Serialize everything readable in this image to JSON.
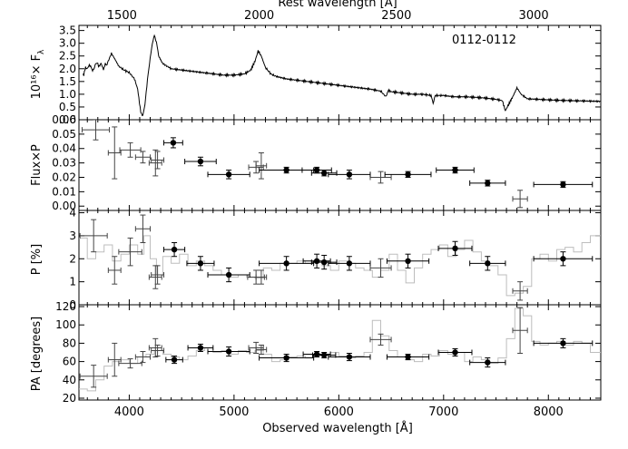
{
  "chart_data": {
    "type": "multi-panel-spectropolarimetry",
    "top_axis": {
      "label": "Rest wavelength [Å]",
      "ticks": [
        1500,
        2000,
        2500,
        3000
      ]
    },
    "x_axis": {
      "label": "Observed wavelength [Å]",
      "range": [
        3520,
        8500
      ],
      "ticks": [
        4000,
        5000,
        6000,
        7000,
        8000
      ]
    },
    "panels": [
      {
        "id": "flux",
        "ylabel": "10¹⁶× F",
        "ylabel_sub": "λ",
        "ylim": [
          0,
          3.7
        ],
        "yticks": [
          "0.0",
          "0.5",
          "1.0",
          "1.5",
          "2.0",
          "2.5",
          "3.0",
          "3.5"
        ],
        "annotation": "0112-0112",
        "spectrum_anchor": [
          [
            3560,
            1.8
          ],
          [
            3600,
            2.1
          ],
          [
            3650,
            2.0
          ],
          [
            3700,
            2.2
          ],
          [
            3760,
            2.05
          ],
          [
            3800,
            2.3
          ],
          [
            3830,
            2.6
          ],
          [
            3860,
            2.4
          ],
          [
            3900,
            2.1
          ],
          [
            3950,
            1.95
          ],
          [
            4000,
            1.85
          ],
          [
            4050,
            1.6
          ],
          [
            4080,
            1.2
          ],
          [
            4110,
            0.3
          ],
          [
            4130,
            0.15
          ],
          [
            4150,
            0.6
          ],
          [
            4180,
            1.8
          ],
          [
            4200,
            2.4
          ],
          [
            4220,
            3.0
          ],
          [
            4240,
            3.3
          ],
          [
            4260,
            3.05
          ],
          [
            4280,
            2.5
          ],
          [
            4320,
            2.2
          ],
          [
            4400,
            2.0
          ],
          [
            4500,
            1.95
          ],
          [
            4600,
            1.9
          ],
          [
            4700,
            1.85
          ],
          [
            4800,
            1.8
          ],
          [
            4900,
            1.75
          ],
          [
            5000,
            1.75
          ],
          [
            5100,
            1.8
          ],
          [
            5160,
            1.95
          ],
          [
            5200,
            2.3
          ],
          [
            5230,
            2.7
          ],
          [
            5260,
            2.5
          ],
          [
            5300,
            2.05
          ],
          [
            5350,
            1.8
          ],
          [
            5400,
            1.7
          ],
          [
            5500,
            1.6
          ],
          [
            5600,
            1.55
          ],
          [
            5700,
            1.5
          ],
          [
            5800,
            1.45
          ],
          [
            5900,
            1.4
          ],
          [
            6000,
            1.35
          ],
          [
            6100,
            1.3
          ],
          [
            6200,
            1.25
          ],
          [
            6300,
            1.2
          ],
          [
            6400,
            1.12
          ],
          [
            6450,
            0.9
          ],
          [
            6470,
            1.15
          ],
          [
            6500,
            1.1
          ],
          [
            6600,
            1.05
          ],
          [
            6700,
            1.0
          ],
          [
            6800,
            1.0
          ],
          [
            6880,
            0.95
          ],
          [
            6900,
            0.65
          ],
          [
            6920,
            0.95
          ],
          [
            7000,
            0.95
          ],
          [
            7100,
            0.9
          ],
          [
            7200,
            0.9
          ],
          [
            7300,
            0.88
          ],
          [
            7400,
            0.85
          ],
          [
            7500,
            0.8
          ],
          [
            7560,
            0.75
          ],
          [
            7590,
            0.35
          ],
          [
            7620,
            0.6
          ],
          [
            7660,
            0.9
          ],
          [
            7700,
            1.25
          ],
          [
            7740,
            1.0
          ],
          [
            7800,
            0.82
          ],
          [
            7900,
            0.8
          ],
          [
            8000,
            0.78
          ],
          [
            8100,
            0.76
          ],
          [
            8200,
            0.75
          ],
          [
            8300,
            0.74
          ],
          [
            8400,
            0.73
          ],
          [
            8500,
            0.72
          ]
        ]
      },
      {
        "id": "polflux",
        "ylabel": "Flux×P",
        "ylim": [
          -0.003,
          0.06
        ],
        "yticks": [
          "0.00",
          "0.01",
          "0.02",
          "0.03",
          "0.04",
          "0.05",
          "0.06"
        ],
        "filled": [
          [
            4420,
            0.044,
            90,
            0.0035
          ],
          [
            4680,
            0.031,
            150,
            0.003
          ],
          [
            4950,
            0.022,
            200,
            0.003
          ],
          [
            5500,
            0.025,
            260,
            0.002
          ],
          [
            5790,
            0.025,
            140,
            0.002
          ],
          [
            5860,
            0.023,
            120,
            0.002
          ],
          [
            6100,
            0.022,
            200,
            0.003
          ],
          [
            6660,
            0.022,
            220,
            0.002
          ],
          [
            7110,
            0.025,
            180,
            0.002
          ],
          [
            7420,
            0.016,
            170,
            0.002
          ],
          [
            8140,
            0.015,
            280,
            0.002
          ]
        ],
        "open": [
          [
            3680,
            0.053,
            130,
            0.007
          ],
          [
            3860,
            0.037,
            60,
            0.018
          ],
          [
            4010,
            0.039,
            100,
            0.005
          ],
          [
            4130,
            0.034,
            70,
            0.004
          ],
          [
            4250,
            0.03,
            60,
            0.009
          ],
          [
            4270,
            0.032,
            60,
            0.006
          ],
          [
            5260,
            0.028,
            50,
            0.009
          ],
          [
            5210,
            0.027,
            70,
            0.004
          ],
          [
            6400,
            0.02,
            100,
            0.004
          ],
          [
            7730,
            0.005,
            70,
            0.006
          ]
        ]
      },
      {
        "id": "pol",
        "ylabel": "P [%]",
        "ylim": [
          0,
          4.1
        ],
        "yticks": [
          "0",
          "1",
          "2",
          "3",
          "4"
        ],
        "filled": [
          [
            4430,
            2.4,
            100,
            0.3
          ],
          [
            4680,
            1.8,
            130,
            0.3
          ],
          [
            4950,
            1.3,
            200,
            0.3
          ],
          [
            5500,
            1.8,
            260,
            0.3
          ],
          [
            5790,
            1.9,
            130,
            0.3
          ],
          [
            5860,
            1.85,
            120,
            0.3
          ],
          [
            6100,
            1.8,
            200,
            0.3
          ],
          [
            6660,
            1.9,
            200,
            0.3
          ],
          [
            7110,
            2.45,
            160,
            0.3
          ],
          [
            7420,
            1.8,
            170,
            0.3
          ],
          [
            8140,
            2.0,
            280,
            0.3
          ]
        ],
        "open": [
          [
            3660,
            3.0,
            130,
            0.7
          ],
          [
            3860,
            1.5,
            60,
            0.6
          ],
          [
            4010,
            2.3,
            110,
            0.6
          ],
          [
            4130,
            3.3,
            70,
            0.6
          ],
          [
            4250,
            1.2,
            60,
            0.5
          ],
          [
            4270,
            1.3,
            60,
            0.4
          ],
          [
            5210,
            1.2,
            80,
            0.3
          ],
          [
            5260,
            1.2,
            50,
            0.3
          ],
          [
            6400,
            1.6,
            100,
            0.4
          ],
          [
            7730,
            0.6,
            70,
            0.4
          ]
        ],
        "steps": [
          [
            3520,
            2.9
          ],
          [
            3600,
            2.0
          ],
          [
            3680,
            2.3
          ],
          [
            3760,
            2.6
          ],
          [
            3840,
            1.9
          ],
          [
            3920,
            2.2
          ],
          [
            4000,
            2.6
          ],
          [
            4080,
            2.2
          ],
          [
            4140,
            3.0
          ],
          [
            4200,
            2.0
          ],
          [
            4260,
            1.3
          ],
          [
            4320,
            2.1
          ],
          [
            4400,
            1.8
          ],
          [
            4480,
            2.2
          ],
          [
            4560,
            1.7
          ],
          [
            4640,
            1.9
          ],
          [
            4720,
            1.7
          ],
          [
            4800,
            1.5
          ],
          [
            4880,
            1.3
          ],
          [
            4960,
            1.2
          ],
          [
            5040,
            1.3
          ],
          [
            5120,
            1.2
          ],
          [
            5200,
            1.15
          ],
          [
            5280,
            1.6
          ],
          [
            5360,
            1.5
          ],
          [
            5440,
            1.8
          ],
          [
            5520,
            1.8
          ],
          [
            5600,
            1.9
          ],
          [
            5680,
            1.8
          ],
          [
            5760,
            1.9
          ],
          [
            5840,
            1.7
          ],
          [
            5920,
            1.5
          ],
          [
            6000,
            1.9
          ],
          [
            6080,
            1.8
          ],
          [
            6160,
            1.6
          ],
          [
            6240,
            1.5
          ],
          [
            6320,
            1.2
          ],
          [
            6400,
            1.5
          ],
          [
            6480,
            2.2
          ],
          [
            6560,
            1.5
          ],
          [
            6640,
            0.95
          ],
          [
            6720,
            1.6
          ],
          [
            6800,
            2.2
          ],
          [
            6880,
            2.4
          ],
          [
            6960,
            2.6
          ],
          [
            7040,
            2.1
          ],
          [
            7120,
            2.4
          ],
          [
            7200,
            2.8
          ],
          [
            7280,
            2.3
          ],
          [
            7360,
            1.9
          ],
          [
            7440,
            1.7
          ],
          [
            7520,
            1.3
          ],
          [
            7600,
            0.4
          ],
          [
            7680,
            0.5
          ],
          [
            7760,
            0.8
          ],
          [
            7840,
            2.0
          ],
          [
            7920,
            2.2
          ],
          [
            8000,
            1.9
          ],
          [
            8080,
            2.4
          ],
          [
            8160,
            2.5
          ],
          [
            8240,
            2.3
          ],
          [
            8320,
            2.7
          ],
          [
            8400,
            3.0
          ],
          [
            8500,
            3.0
          ]
        ]
      },
      {
        "id": "pa",
        "ylabel": "PA [degrees]",
        "ylim": [
          18,
          122
        ],
        "yticks": [
          "20",
          "40",
          "60",
          "80",
          "100",
          "120"
        ],
        "filled": [
          [
            4430,
            62,
            80,
            4
          ],
          [
            4680,
            75,
            120,
            4
          ],
          [
            4950,
            71,
            200,
            5
          ],
          [
            5500,
            64,
            260,
            4
          ],
          [
            5790,
            68,
            130,
            3
          ],
          [
            5860,
            67,
            110,
            3
          ],
          [
            6100,
            65,
            200,
            4
          ],
          [
            6660,
            65,
            200,
            3
          ],
          [
            7110,
            70,
            160,
            4
          ],
          [
            7420,
            59,
            170,
            5
          ],
          [
            8140,
            80,
            280,
            5
          ]
        ],
        "open": [
          [
            3660,
            44,
            130,
            12
          ],
          [
            3860,
            62,
            60,
            18
          ],
          [
            4010,
            58,
            110,
            5
          ],
          [
            4130,
            65,
            70,
            6
          ],
          [
            4250,
            75,
            60,
            10
          ],
          [
            4270,
            72,
            60,
            6
          ],
          [
            5210,
            75,
            70,
            6
          ],
          [
            5260,
            73,
            50,
            5
          ],
          [
            6400,
            84,
            100,
            6
          ],
          [
            7730,
            94,
            70,
            25
          ]
        ],
        "steps": [
          [
            3520,
            30
          ],
          [
            3600,
            28
          ],
          [
            3680,
            40
          ],
          [
            3760,
            55
          ],
          [
            3840,
            60
          ],
          [
            3920,
            62
          ],
          [
            4000,
            58
          ],
          [
            4080,
            65
          ],
          [
            4160,
            68
          ],
          [
            4240,
            72
          ],
          [
            4320,
            68
          ],
          [
            4400,
            65
          ],
          [
            4480,
            62
          ],
          [
            4560,
            66
          ],
          [
            4640,
            72
          ],
          [
            4720,
            75
          ],
          [
            4800,
            70
          ],
          [
            4880,
            72
          ],
          [
            4960,
            68
          ],
          [
            5040,
            72
          ],
          [
            5120,
            70
          ],
          [
            5200,
            72
          ],
          [
            5280,
            68
          ],
          [
            5360,
            60
          ],
          [
            5440,
            62
          ],
          [
            5520,
            65
          ],
          [
            5600,
            66
          ],
          [
            5680,
            64
          ],
          [
            5760,
            66
          ],
          [
            5840,
            68
          ],
          [
            5920,
            70
          ],
          [
            6000,
            66
          ],
          [
            6080,
            64
          ],
          [
            6160,
            66
          ],
          [
            6240,
            70
          ],
          [
            6320,
            105
          ],
          [
            6400,
            88
          ],
          [
            6480,
            72
          ],
          [
            6560,
            65
          ],
          [
            6640,
            62
          ],
          [
            6720,
            60
          ],
          [
            6800,
            68
          ],
          [
            6880,
            66
          ],
          [
            6960,
            72
          ],
          [
            7040,
            68
          ],
          [
            7120,
            70
          ],
          [
            7200,
            60
          ],
          [
            7280,
            65
          ],
          [
            7360,
            62
          ],
          [
            7440,
            58
          ],
          [
            7520,
            64
          ],
          [
            7600,
            85
          ],
          [
            7680,
            118
          ],
          [
            7760,
            110
          ],
          [
            7840,
            82
          ],
          [
            7920,
            78
          ],
          [
            8000,
            80
          ],
          [
            8080,
            82
          ],
          [
            8160,
            78
          ],
          [
            8240,
            82
          ],
          [
            8320,
            80
          ],
          [
            8400,
            70
          ],
          [
            8500,
            70
          ]
        ]
      }
    ]
  }
}
